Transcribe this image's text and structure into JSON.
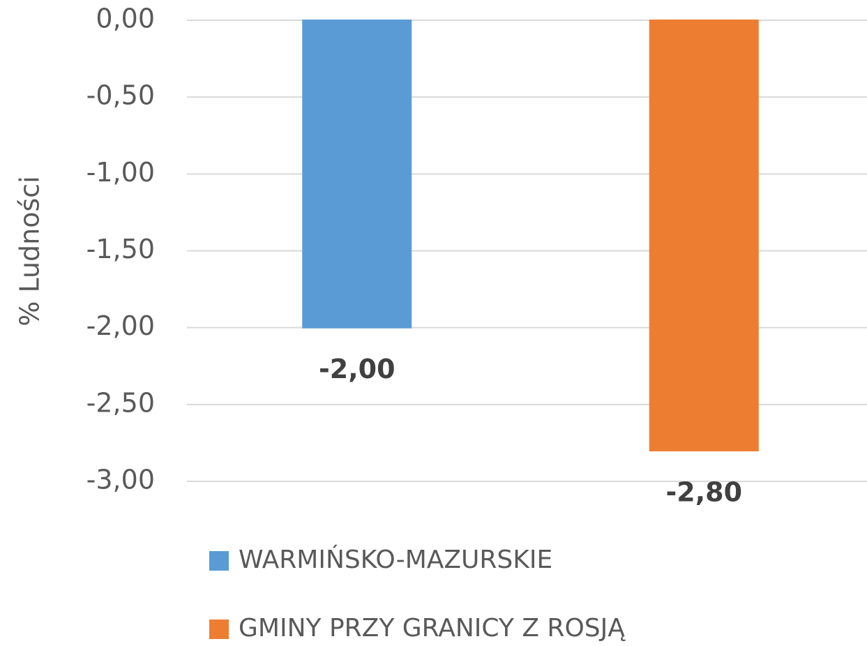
{
  "chart_data": {
    "type": "bar",
    "ylabel": "% Ludności",
    "categories": [
      null
    ],
    "series": [
      {
        "name": "WARMIŃSKO-MAZURSKIE",
        "color": "#5b9bd5",
        "values": [
          -2.0
        ],
        "value_labels": [
          "-2,00"
        ]
      },
      {
        "name": "GMINY PRZY GRANICY Z ROSJĄ",
        "color": "#ed7d31",
        "values": [
          -2.8
        ],
        "value_labels": [
          "-2,80"
        ]
      }
    ],
    "ylim": [
      -3,
      0
    ],
    "yticks": [
      {
        "value": 0,
        "label": "0,00"
      },
      {
        "value": -0.5,
        "label": "-0,50"
      },
      {
        "value": -1,
        "label": "-1,00"
      },
      {
        "value": -1.5,
        "label": "-1,50"
      },
      {
        "value": -2,
        "label": "-2,00"
      },
      {
        "value": -2.5,
        "label": "-2,50"
      },
      {
        "value": -3,
        "label": "-3,00"
      }
    ],
    "grid": true,
    "legend": "bottom"
  }
}
